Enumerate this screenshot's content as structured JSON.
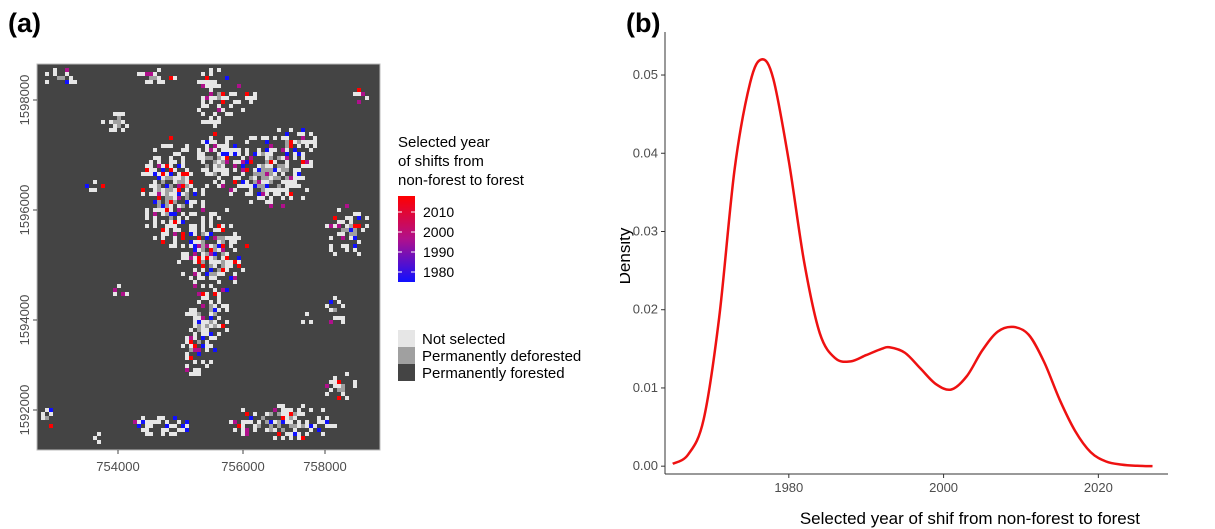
{
  "panels": {
    "a_label": "(a)",
    "b_label": "(b)"
  },
  "colors": {
    "forested": "#444444",
    "deforested": "#a0a0a0",
    "not_selected": "#e6e6e6",
    "year_high": "#ff0000",
    "year_mid": "#b0108c",
    "year_low": "#1010ff",
    "density_line": "#ee1111"
  },
  "map": {
    "x_ticks": [
      "754000",
      "756000",
      "758000"
    ],
    "y_ticks": [
      "1592000",
      "1594000",
      "1596000",
      "1598000"
    ],
    "legend_title": [
      "Selected year",
      "of shifts from",
      "non-forest to forest"
    ],
    "year_ticks": [
      "2010",
      "2000",
      "1990",
      "1980"
    ],
    "categories": [
      "Not selected",
      "Permanently deforested",
      "Permanently forested"
    ]
  },
  "chart_data": {
    "type": "line",
    "title": "",
    "xlabel": "Selected year of shif from non-forest to forest",
    "ylabel": "Density",
    "xlim": [
      1964,
      2029
    ],
    "ylim": [
      -0.001,
      0.0555
    ],
    "x_ticks": [
      1980,
      2000,
      2020
    ],
    "y_ticks": [
      0.0,
      0.01,
      0.02,
      0.03,
      0.04,
      0.05
    ],
    "x_tick_labels": [
      "1980",
      "2000",
      "2020"
    ],
    "y_tick_labels": [
      "0.00",
      "0.01",
      "0.02",
      "0.03",
      "0.04",
      "0.05"
    ],
    "grid": false,
    "series": [
      {
        "x": [
          1965,
          1967,
          1969,
          1971,
          1973,
          1975,
          1976.5,
          1978,
          1980,
          1982,
          1984,
          1986,
          1988,
          1990,
          1992,
          1993,
          1995,
          1997,
          1999,
          2001,
          2003,
          2005,
          2007,
          2009,
          2011,
          2013,
          2015,
          2017,
          2019,
          2021,
          2023,
          2025,
          2027
        ],
        "y": [
          0.0003,
          0.0015,
          0.006,
          0.019,
          0.038,
          0.049,
          0.052,
          0.0495,
          0.039,
          0.026,
          0.017,
          0.0138,
          0.0134,
          0.0142,
          0.015,
          0.0152,
          0.0145,
          0.0125,
          0.0105,
          0.0098,
          0.0115,
          0.0148,
          0.0172,
          0.0178,
          0.0168,
          0.0133,
          0.0085,
          0.0045,
          0.0018,
          0.0006,
          0.0002,
          5e-05,
          0.0
        ]
      }
    ]
  }
}
